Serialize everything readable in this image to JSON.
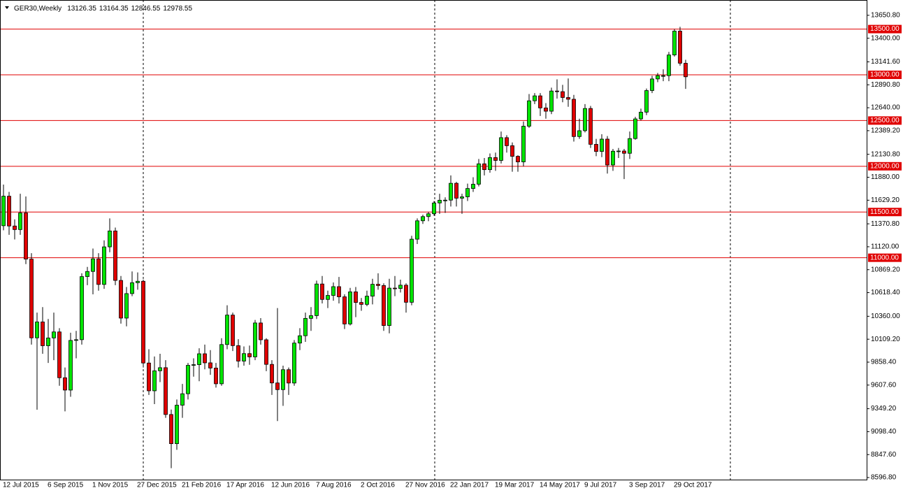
{
  "chart_data": {
    "type": "candlestick",
    "title": "GER30,Weekly",
    "categories": [
      "12 Jul 2015",
      null,
      null,
      null,
      null,
      null,
      null,
      null,
      "6 Sep 2015",
      null,
      null,
      null,
      null,
      null,
      null,
      null,
      "1 Nov 2015",
      null,
      null,
      null,
      null,
      null,
      null,
      null,
      "27 Dec 2015",
      null,
      null,
      null,
      null,
      null,
      null,
      null,
      "21 Feb 2016",
      null,
      null,
      null,
      null,
      null,
      null,
      null,
      "17 Apr 2016",
      null,
      null,
      null,
      null,
      null,
      null,
      null,
      "12 Jun 2016",
      null,
      null,
      null,
      null,
      null,
      null,
      null,
      "7 Aug 2016",
      null,
      null,
      null,
      null,
      null,
      null,
      null,
      "2 Oct 2016",
      null,
      null,
      null,
      null,
      null,
      null,
      null,
      "27 Nov 2016",
      null,
      null,
      null,
      null,
      null,
      null,
      null,
      "22 Jan 2017",
      null,
      null,
      null,
      null,
      null,
      null,
      null,
      "19 Mar 2017",
      null,
      null,
      null,
      null,
      null,
      null,
      null,
      "14 May 2017",
      null,
      null,
      null,
      null,
      null,
      null,
      null,
      "9 Jul 2017",
      null,
      null,
      null,
      null,
      null,
      null,
      null,
      "3 Sep 2017",
      null,
      null,
      null,
      null,
      null,
      null,
      null,
      "29 Oct 2017",
      null,
      null
    ],
    "open": [
      11350,
      11673,
      11347,
      11308,
      11490,
      10985,
      10124,
      10298,
      10038,
      10123,
      10189,
      9688,
      9553,
      10096,
      10104,
      10794,
      10850,
      10988,
      10708,
      11119,
      11293,
      10752,
      10340,
      10608,
      10727,
      10743,
      9849,
      9545,
      9764,
      9798,
      9286,
      8967,
      9388,
      9513,
      9824,
      9831,
      9950,
      9851,
      9794,
      9622,
      10051,
      10373,
      10039,
      9870,
      9952,
      9916,
      10287,
      10103,
      9834,
      9631,
      9558,
      9776,
      9630,
      10067,
      10147,
      10337,
      10367,
      10713,
      10544,
      10588,
      10684,
      10573,
      10276,
      10627,
      10511,
      10490,
      10580,
      10710,
      10696,
      10259,
      10668,
      10664,
      10700,
      10513,
      11203,
      11404,
      11450,
      11481,
      11599,
      11629,
      11630,
      11814,
      11651,
      11666,
      11757,
      11804,
      12027,
      11963,
      12095,
      12064,
      12313,
      12225,
      12109,
      12048,
      12438,
      12716,
      12770,
      12638,
      12602,
      12823,
      12816,
      12752,
      12733,
      12325,
      12389,
      12632,
      12240,
      12162,
      12297,
      12014,
      12165,
      12167,
      12142,
      12303,
      12518,
      12592,
      12828,
      12955,
      12991,
      12991,
      13217,
      13478,
      13126.35
    ],
    "high": [
      11800,
      11720,
      11420,
      11700,
      11670,
      11050,
      10400,
      10460,
      10330,
      10400,
      10230,
      9800,
      10180,
      10200,
      10830,
      10900,
      11100,
      11050,
      11190,
      11430,
      11330,
      10800,
      10680,
      10850,
      10840,
      10760,
      10000,
      9920,
      9950,
      9880,
      9340,
      9450,
      9620,
      9850,
      9900,
      10010,
      10050,
      9990,
      9850,
      10120,
      10480,
      10400,
      10110,
      10030,
      10040,
      10320,
      10340,
      10120,
      9880,
      10450,
      9820,
      9800,
      10100,
      10230,
      10400,
      10460,
      10750,
      10800,
      10640,
      10730,
      10790,
      10600,
      10670,
      10680,
      10560,
      10640,
      10770,
      10830,
      10720,
      10770,
      10800,
      10760,
      10720,
      11240,
      11430,
      11470,
      11500,
      11620,
      11700,
      11660,
      11900,
      11830,
      11700,
      11810,
      11880,
      12080,
      12090,
      12140,
      12150,
      12380,
      12340,
      12260,
      12120,
      12490,
      12790,
      12800,
      12800,
      12690,
      12860,
      12950,
      12890,
      12960,
      12780,
      12520,
      12680,
      12660,
      12300,
      12350,
      12330,
      12190,
      12200,
      12190,
      12380,
      12540,
      12630,
      12850,
      12990,
      13020,
      13060,
      13250,
      13500,
      13525,
      13164.35
    ],
    "low": [
      11300,
      11250,
      11200,
      11250,
      10930,
      10050,
      9338,
      9950,
      9850,
      9880,
      9600,
      9320,
      9480,
      9900,
      10050,
      10700,
      10600,
      10640,
      10660,
      11060,
      10700,
      10280,
      10250,
      10580,
      10650,
      9800,
      9500,
      9400,
      9640,
      9250,
      8699,
      8900,
      9250,
      9450,
      9700,
      9650,
      9780,
      9720,
      9580,
      9600,
      10000,
      9980,
      9800,
      9820,
      9830,
      9880,
      10050,
      9760,
      9500,
      9214,
      9380,
      9500,
      9600,
      9990,
      10080,
      10200,
      10330,
      10500,
      10450,
      10530,
      10500,
      10220,
      10260,
      10350,
      10420,
      10470,
      10490,
      10650,
      10200,
      10174,
      10580,
      10620,
      10400,
      10480,
      11150,
      11370,
      11400,
      11460,
      11480,
      11490,
      11560,
      11560,
      11480,
      11620,
      11720,
      11780,
      11900,
      11930,
      11950,
      12030,
      12150,
      11940,
      11940,
      12000,
      12420,
      12680,
      12550,
      12520,
      12570,
      12740,
      12700,
      12650,
      12270,
      12300,
      12370,
      12200,
      12110,
      12100,
      11920,
      11950,
      12090,
      11860,
      12080,
      12290,
      12500,
      12560,
      12800,
      12920,
      12930,
      12930,
      13200,
      13100,
      12846.55
    ],
    "close": [
      11673,
      11347,
      11308,
      11490,
      10985,
      10124,
      10298,
      10038,
      10123,
      10189,
      9688,
      9553,
      10096,
      10104,
      10794,
      10850,
      10988,
      10708,
      11119,
      11293,
      10752,
      10340,
      10608,
      10727,
      10743,
      9849,
      9545,
      9764,
      9798,
      9286,
      8967,
      9388,
      9513,
      9824,
      9831,
      9950,
      9851,
      9794,
      9622,
      10051,
      10373,
      10039,
      9870,
      9952,
      9916,
      10287,
      10103,
      9834,
      9631,
      9558,
      9776,
      9630,
      10067,
      10147,
      10337,
      10367,
      10713,
      10544,
      10588,
      10684,
      10573,
      10276,
      10627,
      10511,
      10490,
      10580,
      10710,
      10696,
      10259,
      10668,
      10664,
      10700,
      10513,
      11203,
      11404,
      11450,
      11481,
      11599,
      11629,
      11630,
      11814,
      11651,
      11666,
      11757,
      11804,
      12027,
      11963,
      12095,
      12064,
      12313,
      12225,
      12109,
      12048,
      12438,
      12716,
      12770,
      12638,
      12602,
      12823,
      12816,
      12752,
      12733,
      12325,
      12389,
      12632,
      12240,
      12162,
      12297,
      12014,
      12165,
      12167,
      12142,
      12303,
      12518,
      12592,
      12828,
      12955,
      12991,
      12991,
      13217,
      13478,
      13127,
      12978.55
    ],
    "up_color": "#00e400",
    "down_color": "#e00000",
    "level_color": "#e00000",
    "ylim": [
      8574,
      13818
    ],
    "yticks": [
      {
        "value": 13650.8,
        "label": "13650.80"
      },
      {
        "value": 13400,
        "label": "13400.00"
      },
      {
        "value": 13141.6,
        "label": "13141.60"
      },
      {
        "value": 12890.8,
        "label": "12890.80"
      },
      {
        "value": 12640,
        "label": "12640.00"
      },
      {
        "value": 12389.2,
        "label": "12389.20"
      },
      {
        "value": 12130.8,
        "label": "12130.80"
      },
      {
        "value": 11880,
        "label": "11880.00"
      },
      {
        "value": 11629.2,
        "label": "11629.20"
      },
      {
        "value": 11370.8,
        "label": "11370.80"
      },
      {
        "value": 11120,
        "label": "11120.00"
      },
      {
        "value": 10869.2,
        "label": "10869.20"
      },
      {
        "value": 10618.4,
        "label": "10618.40"
      },
      {
        "value": 10360,
        "label": "10360.00"
      },
      {
        "value": 10109.2,
        "label": "10109.20"
      },
      {
        "value": 9858.4,
        "label": "9858.40"
      },
      {
        "value": 9607.6,
        "label": "9607.60"
      },
      {
        "value": 9349.2,
        "label": "9349.20"
      },
      {
        "value": 9098.4,
        "label": "9098.40"
      },
      {
        "value": 8847.6,
        "label": "8847.60"
      },
      {
        "value": 8596.8,
        "label": "8596.80"
      }
    ],
    "levels": [
      {
        "value": 13500,
        "label": "13500.00"
      },
      {
        "value": 13000,
        "label": "13000.00"
      },
      {
        "value": 12500,
        "label": "12500.00"
      },
      {
        "value": 12000,
        "label": "12000.00"
      },
      {
        "value": 11500,
        "label": "11500.00"
      },
      {
        "value": 11000,
        "label": "11000.00"
      }
    ]
  }
}
